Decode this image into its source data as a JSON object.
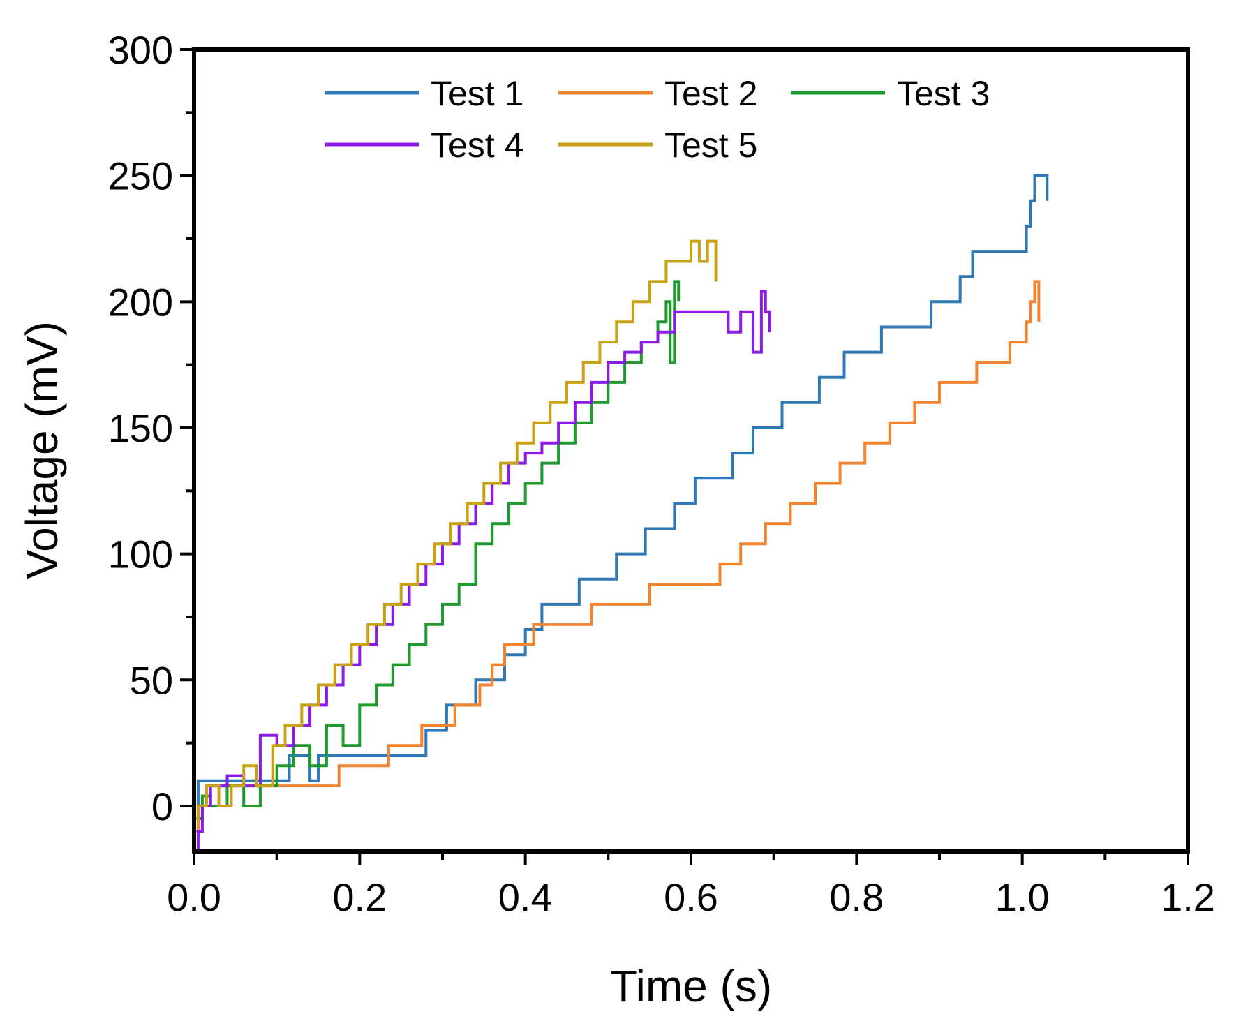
{
  "chart_data": {
    "type": "line",
    "xlabel": "Time (s)",
    "ylabel": "Voltage (mV)",
    "xlim": [
      0,
      1.2
    ],
    "ylim": [
      -18,
      300
    ],
    "xticks": [
      0.0,
      0.2,
      0.4,
      0.6,
      0.8,
      1.0,
      1.2
    ],
    "xtick_labels": [
      "0.0",
      "0.2",
      "0.4",
      "0.6",
      "0.8",
      "1.0",
      "1.2"
    ],
    "yticks": [
      0,
      50,
      100,
      150,
      200,
      250,
      300
    ],
    "ytick_labels": [
      "0",
      "50",
      "100",
      "150",
      "200",
      "250",
      "300"
    ],
    "grid": false,
    "legend_position": "top-center",
    "series": [
      {
        "name": "Test 1",
        "color": "#2f78b5",
        "x": [
          0,
          0.005,
          0.11,
          0.115,
          0.14,
          0.15,
          0.24,
          0.28,
          0.305,
          0.34,
          0.375,
          0.4,
          0.42,
          0.435,
          0.465,
          0.51,
          0.545,
          0.58,
          0.605,
          0.65,
          0.675,
          0.71,
          0.755,
          0.785,
          0.83,
          0.89,
          0.925,
          0.94,
          1.005,
          1.01,
          1.015,
          1.03
        ],
        "y": [
          -5,
          10,
          10,
          20,
          10,
          20,
          20,
          30,
          40,
          50,
          60,
          70,
          80,
          80,
          90,
          100,
          110,
          120,
          130,
          140,
          150,
          160,
          170,
          180,
          190,
          200,
          210,
          220,
          230,
          240,
          250,
          240
        ]
      },
      {
        "name": "Test 2",
        "color": "#f28430",
        "x": [
          0,
          0.005,
          0.015,
          0.03,
          0.175,
          0.235,
          0.275,
          0.315,
          0.345,
          0.36,
          0.375,
          0.41,
          0.48,
          0.55,
          0.635,
          0.66,
          0.69,
          0.72,
          0.75,
          0.78,
          0.81,
          0.84,
          0.87,
          0.9,
          0.945,
          0.985,
          1.005,
          1.01,
          1.015,
          1.02
        ],
        "y": [
          -10,
          0,
          8,
          8,
          16,
          24,
          32,
          40,
          48,
          56,
          64,
          72,
          80,
          88,
          96,
          104,
          112,
          120,
          128,
          136,
          144,
          152,
          160,
          168,
          176,
          184,
          192,
          200,
          208,
          192
        ]
      },
      {
        "name": "Test 3",
        "color": "#1e9a2e",
        "x": [
          0,
          0.01,
          0.02,
          0.04,
          0.06,
          0.08,
          0.1,
          0.12,
          0.14,
          0.16,
          0.18,
          0.2,
          0.22,
          0.24,
          0.26,
          0.28,
          0.3,
          0.32,
          0.34,
          0.36,
          0.38,
          0.4,
          0.42,
          0.44,
          0.46,
          0.48,
          0.5,
          0.52,
          0.54,
          0.56,
          0.57,
          0.575,
          0.58,
          0.585
        ],
        "y": [
          -5,
          4,
          0,
          8,
          0,
          8,
          16,
          24,
          16,
          32,
          24,
          40,
          48,
          56,
          64,
          72,
          80,
          88,
          104,
          112,
          120,
          128,
          136,
          144,
          152,
          160,
          168,
          176,
          184,
          192,
          200,
          176,
          208,
          200
        ]
      },
      {
        "name": "Test 4",
        "color": "#8a1be6",
        "x": [
          0,
          0.005,
          0.01,
          0.02,
          0.04,
          0.06,
          0.08,
          0.1,
          0.12,
          0.14,
          0.16,
          0.18,
          0.2,
          0.22,
          0.24,
          0.26,
          0.28,
          0.3,
          0.32,
          0.34,
          0.36,
          0.38,
          0.4,
          0.42,
          0.44,
          0.46,
          0.48,
          0.5,
          0.52,
          0.54,
          0.56,
          0.58,
          0.6,
          0.62,
          0.645,
          0.66,
          0.675,
          0.685,
          0.69,
          0.695
        ],
        "y": [
          -18,
          -10,
          0,
          8,
          12,
          8,
          28,
          24,
          32,
          40,
          48,
          56,
          64,
          72,
          80,
          88,
          96,
          104,
          112,
          120,
          128,
          136,
          140,
          144,
          152,
          160,
          168,
          176,
          180,
          184,
          188,
          196,
          196,
          196,
          188,
          196,
          180,
          204,
          196,
          188
        ]
      },
      {
        "name": "Test 5",
        "color": "#c9a115",
        "x": [
          0,
          0.005,
          0.015,
          0.03,
          0.045,
          0.06,
          0.075,
          0.095,
          0.11,
          0.13,
          0.15,
          0.17,
          0.19,
          0.21,
          0.23,
          0.25,
          0.27,
          0.29,
          0.31,
          0.33,
          0.35,
          0.37,
          0.39,
          0.41,
          0.43,
          0.45,
          0.47,
          0.49,
          0.51,
          0.53,
          0.55,
          0.57,
          0.59,
          0.6,
          0.61,
          0.62,
          0.63
        ],
        "y": [
          -5,
          0,
          8,
          0,
          8,
          16,
          8,
          24,
          32,
          40,
          48,
          56,
          64,
          72,
          80,
          88,
          96,
          104,
          112,
          120,
          128,
          136,
          144,
          152,
          160,
          168,
          176,
          184,
          192,
          200,
          208,
          216,
          216,
          224,
          216,
          224,
          208
        ]
      }
    ]
  }
}
